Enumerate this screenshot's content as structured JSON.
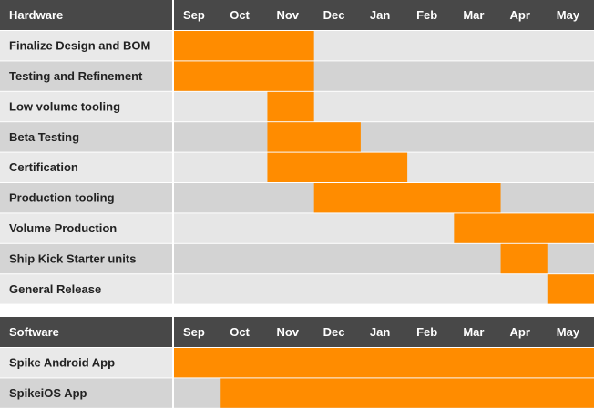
{
  "chart_data": [
    {
      "type": "gantt",
      "title": "Hardware",
      "categories": [
        "Sep",
        "Oct",
        "Nov",
        "Dec",
        "Jan",
        "Feb",
        "Mar",
        "Apr",
        "May"
      ],
      "color": "#ff8c00",
      "tasks": [
        {
          "name": "Finalize Design and BOM",
          "start": 0,
          "end": 3
        },
        {
          "name": "Testing and Refinement",
          "start": 0,
          "end": 3
        },
        {
          "name": "Low volume tooling",
          "start": 2,
          "end": 3
        },
        {
          "name": "Beta Testing",
          "start": 2,
          "end": 4
        },
        {
          "name": "Certification",
          "start": 2,
          "end": 5
        },
        {
          "name": "Production tooling",
          "start": 3,
          "end": 7
        },
        {
          "name": "Volume Production",
          "start": 6,
          "end": 9
        },
        {
          "name": "Ship Kick Starter units",
          "start": 7,
          "end": 8
        },
        {
          "name": "General Release",
          "start": 8,
          "end": 9
        }
      ]
    },
    {
      "type": "gantt",
      "title": "Software",
      "categories": [
        "Sep",
        "Oct",
        "Nov",
        "Dec",
        "Jan",
        "Feb",
        "Mar",
        "Apr",
        "May"
      ],
      "color": "#ff8c00",
      "tasks": [
        {
          "name": "Spike Android App",
          "start": 0,
          "end": 9
        },
        {
          "name": "SpikeiOS App",
          "start": 1,
          "end": 9
        }
      ]
    }
  ]
}
